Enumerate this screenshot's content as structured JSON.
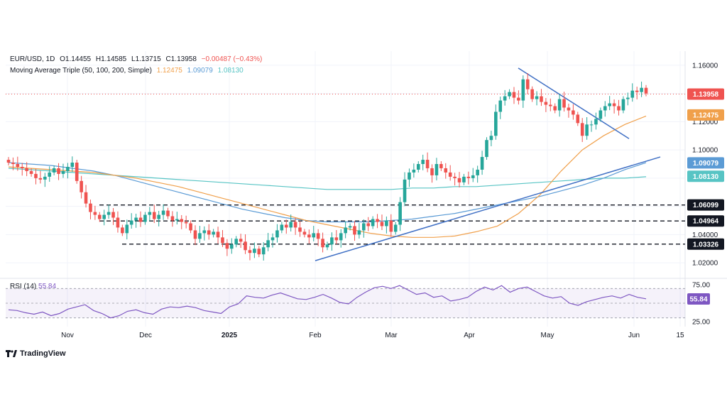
{
  "header": {
    "symbol": "EUR/USD, 1D",
    "open": "O1.14455",
    "high": "H1.14585",
    "low": "L1.13715",
    "close": "C1.13958",
    "change": "−0.00487 (−0.43%)",
    "ma_title": "Moving Average Triple (50, 100, 200, Simple)",
    "ma50_value": "1.12475",
    "ma100_value": "1.09079",
    "ma200_value": "1.08130"
  },
  "rsi": {
    "label": "RSI (14)",
    "value": "55.84"
  },
  "brand": {
    "name": "TradingView"
  },
  "colors": {
    "up": "#26a69a",
    "down": "#ef5350",
    "ma50": "#f0a04b",
    "ma100": "#5b9bd5",
    "ma200": "#57c4c4",
    "trendline": "#3f6fc4",
    "rsi": "#7e57c2",
    "price_line": "#ef5350"
  },
  "chart_data": {
    "type": "line",
    "title": "EUR/USD, 1D",
    "x_ticks": [
      "Nov",
      "Dec",
      "2025",
      "Feb",
      "Mar",
      "Apr",
      "May",
      "Jun",
      "15"
    ],
    "y_ticks": [
      "1.16000",
      "1.12000",
      "1.10000",
      "1.04000",
      "1.02000"
    ],
    "ylim": [
      1.01,
      1.17
    ],
    "price_labels": [
      {
        "text": "1.13958",
        "value": 1.13958,
        "color": "#ef5350"
      },
      {
        "text": "1.12475",
        "value": 1.12475,
        "color": "#f0a04b"
      },
      {
        "text": "1.09079",
        "value": 1.09079,
        "color": "#5b9bd5"
      },
      {
        "text": "1.08130",
        "value": 1.0813,
        "color": "#57c4c4"
      },
      {
        "text": "1.06099",
        "value": 1.06099,
        "color": "#131722"
      },
      {
        "text": "1.04964",
        "value": 1.04964,
        "color": "#131722"
      },
      {
        "text": "1.03326",
        "value": 1.03326,
        "color": "#131722"
      }
    ],
    "horizontal_levels": [
      1.06099,
      1.04964,
      1.03326
    ],
    "close_series": [
      1.091,
      1.09,
      1.088,
      1.087,
      1.085,
      1.083,
      1.08,
      1.079,
      1.081,
      1.084,
      1.087,
      1.083,
      1.085,
      1.088,
      1.091,
      1.078,
      1.07,
      1.062,
      1.056,
      1.054,
      1.051,
      1.054,
      1.056,
      1.052,
      1.045,
      1.041,
      1.047,
      1.05,
      1.052,
      1.049,
      1.054,
      1.056,
      1.051,
      1.054,
      1.057,
      1.053,
      1.05,
      1.051,
      1.049,
      1.048,
      1.043,
      1.037,
      1.041,
      1.043,
      1.04,
      1.042,
      1.038,
      1.034,
      1.03,
      1.033,
      1.037,
      1.035,
      1.029,
      1.027,
      1.03,
      1.026,
      1.031,
      1.036,
      1.038,
      1.043,
      1.047,
      1.045,
      1.049,
      1.045,
      1.042,
      1.04,
      1.038,
      1.041,
      1.037,
      1.031,
      1.033,
      1.038,
      1.036,
      1.041,
      1.045,
      1.046,
      1.04,
      1.043,
      1.048,
      1.046,
      1.051,
      1.049,
      1.046,
      1.05,
      1.042,
      1.047,
      1.063,
      1.079,
      1.084,
      1.086,
      1.09,
      1.093,
      1.087,
      1.082,
      1.09,
      1.087,
      1.084,
      1.081,
      1.08,
      1.077,
      1.081,
      1.08,
      1.082,
      1.086,
      1.095,
      1.107,
      1.11,
      1.127,
      1.135,
      1.138,
      1.141,
      1.137,
      1.135,
      1.15,
      1.143,
      1.136,
      1.138,
      1.134,
      1.132,
      1.131,
      1.128,
      1.136,
      1.13,
      1.128,
      1.125,
      1.119,
      1.11,
      1.118,
      1.118,
      1.122,
      1.128,
      1.131,
      1.133,
      1.131,
      1.128,
      1.136,
      1.137,
      1.142,
      1.141,
      1.144,
      1.14
    ],
    "ma50": [
      1.088,
      1.087,
      1.086,
      1.085,
      1.084,
      1.082,
      1.08,
      1.077,
      1.074,
      1.07,
      1.066,
      1.062,
      1.058,
      1.054,
      1.05,
      1.047,
      1.044,
      1.041,
      1.039,
      1.038,
      1.038,
      1.039,
      1.042,
      1.046,
      1.055,
      1.068,
      1.085,
      1.1,
      1.11,
      1.118,
      1.124
    ],
    "ma100": [
      1.091,
      1.09,
      1.089,
      1.087,
      1.085,
      1.082,
      1.078,
      1.074,
      1.07,
      1.066,
      1.062,
      1.058,
      1.055,
      1.052,
      1.05,
      1.049,
      1.049,
      1.049,
      1.05,
      1.051,
      1.053,
      1.055,
      1.058,
      1.061,
      1.064,
      1.067,
      1.071,
      1.075,
      1.08,
      1.086,
      1.091
    ],
    "ma200": [
      1.087,
      1.086,
      1.085,
      1.084,
      1.083,
      1.082,
      1.081,
      1.08,
      1.079,
      1.078,
      1.077,
      1.076,
      1.075,
      1.074,
      1.073,
      1.072,
      1.072,
      1.072,
      1.072,
      1.073,
      1.073,
      1.074,
      1.074,
      1.075,
      1.076,
      1.077,
      1.078,
      1.079,
      1.08,
      1.08,
      1.081
    ],
    "trendlines": [
      {
        "from": [
          0.0,
          1.0215
        ],
        "to": [
          1.0,
          1.095
        ]
      },
      {
        "from": [
          0.0,
          1.158
        ],
        "to": [
          1.0,
          1.108
        ]
      }
    ],
    "rsi_series": [
      41,
      40,
      37,
      35,
      38,
      33,
      36,
      42,
      45,
      48,
      40,
      36,
      30,
      33,
      39,
      41,
      37,
      35,
      42,
      45,
      44,
      46,
      44,
      40,
      38,
      36,
      45,
      49,
      60,
      58,
      57,
      61,
      64,
      60,
      56,
      55,
      58,
      62,
      57,
      51,
      49,
      58,
      65,
      71,
      73,
      70,
      74,
      68,
      62,
      64,
      58,
      60,
      53,
      55,
      58,
      66,
      72,
      68,
      74,
      65,
      70,
      72,
      66,
      60,
      57,
      59,
      50,
      47,
      52,
      55,
      58,
      60,
      57,
      62,
      58,
      56
    ]
  }
}
